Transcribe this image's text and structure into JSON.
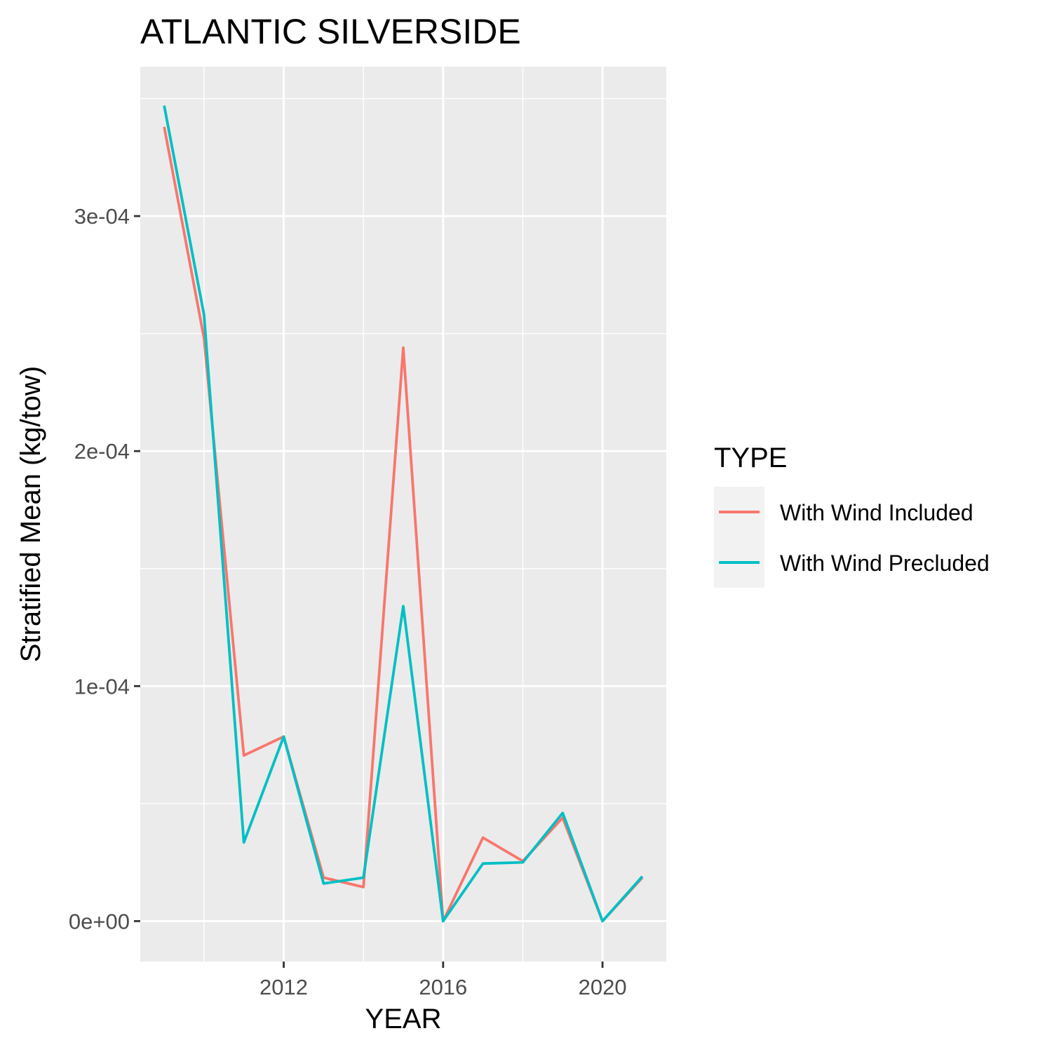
{
  "chart_data": {
    "type": "line",
    "title": "ATLANTIC SILVERSIDE",
    "xlabel": "YEAR",
    "ylabel": "Stratified Mean (kg/tow)",
    "x": [
      2009,
      2010,
      2011,
      2012,
      2013,
      2014,
      2015,
      2016,
      2017,
      2018,
      2019,
      2020,
      2021
    ],
    "xlim": [
      2008.4,
      2021.6
    ],
    "ylim": [
      -1.72e-05,
      0.0003636
    ],
    "x_ticks": [
      2012,
      2016,
      2020
    ],
    "x_tick_labels": [
      "2012",
      "2016",
      "2020"
    ],
    "y_ticks": [
      0,
      0.0001,
      0.0002,
      0.0003
    ],
    "y_tick_labels": [
      "0e+00",
      "1e-04",
      "2e-04",
      "3e-04"
    ],
    "grid": true,
    "legend_position": "right",
    "legend_title": "TYPE",
    "series": [
      {
        "name": "With Wind Included",
        "color": "#F8766D",
        "values": [
          0.000338,
          0.000248,
          7.05e-05,
          7.85e-05,
          1.85e-05,
          1.45e-05,
          0.000244,
          0.0,
          3.55e-05,
          2.55e-05,
          4.4e-05,
          0.0,
          1.85e-05
        ]
      },
      {
        "name": "With Wind Precluded",
        "color": "#00BFC4",
        "values": [
          0.000347,
          0.000258,
          3.35e-05,
          7.85e-05,
          1.6e-05,
          1.85e-05,
          0.000134,
          0.0,
          2.45e-05,
          2.5e-05,
          4.6e-05,
          0.0,
          1.9e-05
        ]
      }
    ]
  }
}
